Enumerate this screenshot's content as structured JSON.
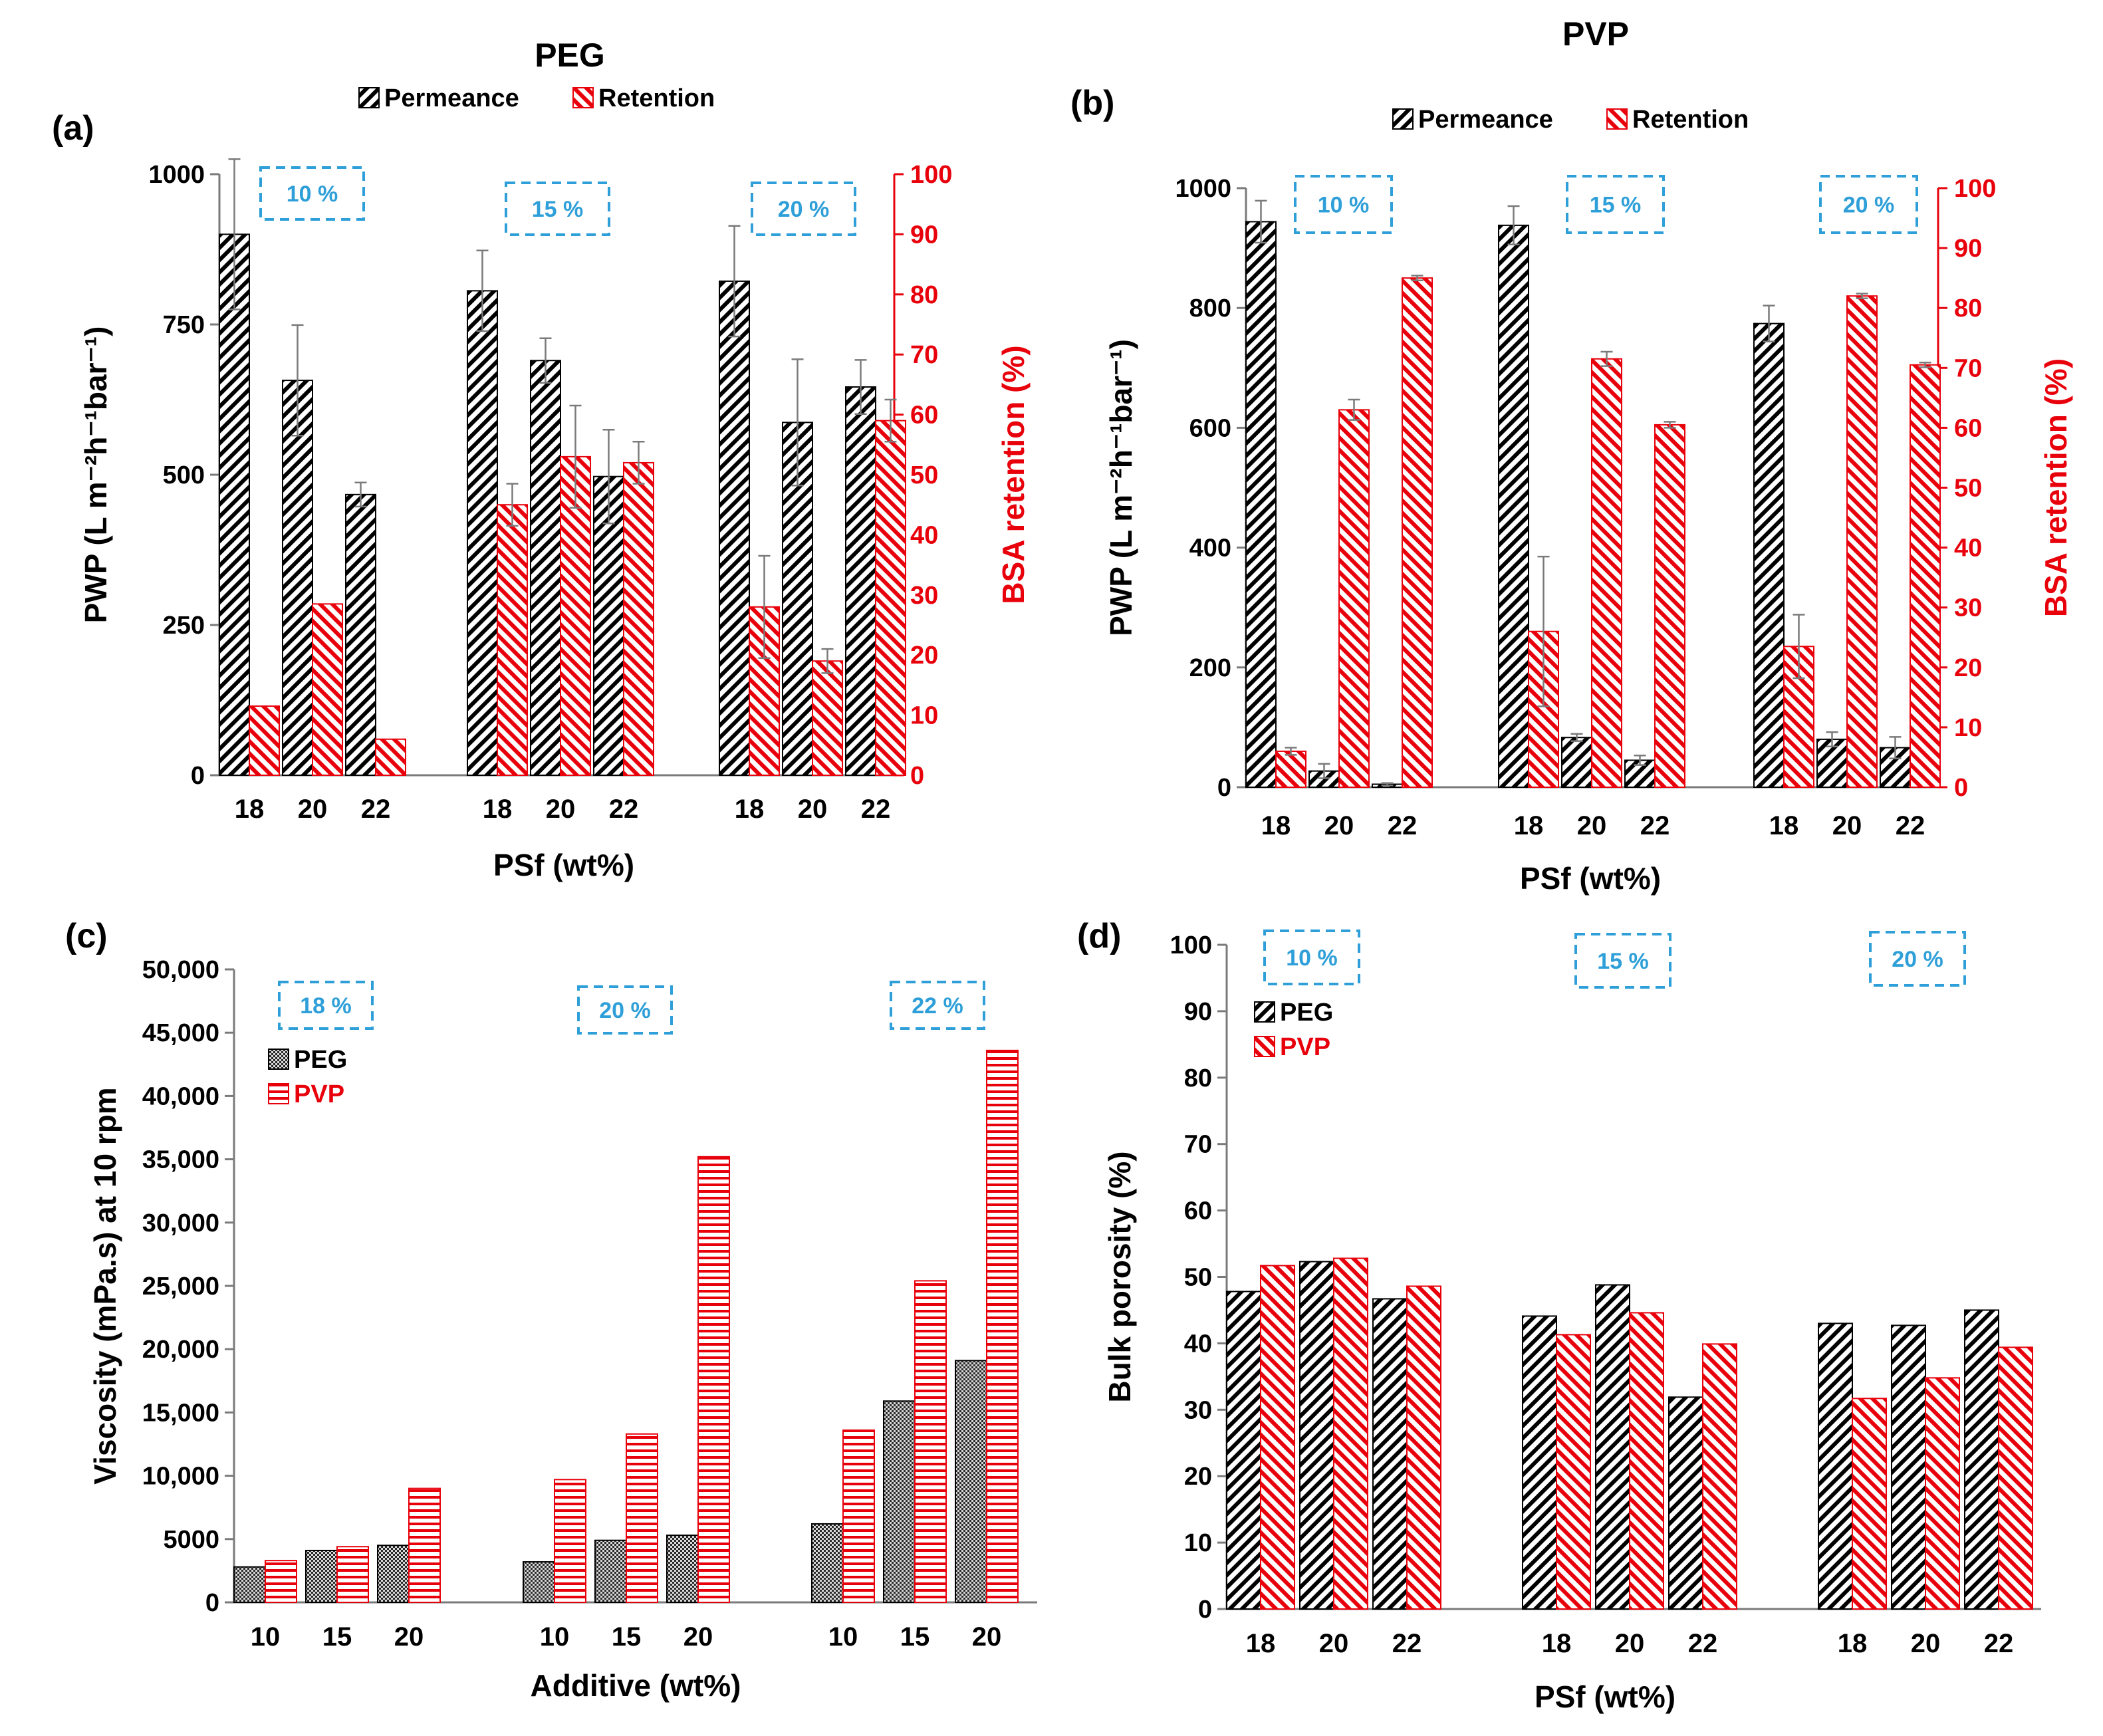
{
  "colors": {
    "black": "#000000",
    "red": "#e8000b",
    "box": "#2e9fd8",
    "grey": "#7a7a7a"
  },
  "chart_data": [
    {
      "panel": "(a)",
      "type": "bar",
      "title": "PEG",
      "groups": [
        {
          "box_label": "10 %",
          "categories": [
            "18",
            "20",
            "22"
          ]
        },
        {
          "box_label": "15 %",
          "categories": [
            "18",
            "20",
            "22"
          ]
        },
        {
          "box_label": "20 %",
          "categories": [
            "18",
            "20",
            "22"
          ]
        }
      ],
      "series": [
        {
          "name": "Permeance",
          "axis": "left",
          "values": [
            900,
            657,
            467,
            806,
            690,
            497,
            822,
            587,
            646
          ],
          "errors": [
            125,
            92,
            20,
            67,
            37,
            78,
            92,
            105,
            45
          ]
        },
        {
          "name": "Retention",
          "axis": "right",
          "values": [
            11.5,
            28.5,
            6,
            45,
            53,
            52,
            28,
            19,
            59
          ],
          "errors": [
            0,
            0,
            0,
            3.5,
            8.5,
            3.5,
            8.5,
            2,
            3.5
          ]
        }
      ],
      "xlabel": "PSf (wt%)",
      "ylabel": "PWP (L m⁻²h⁻¹bar⁻¹)",
      "y2label": "BSA retention (%)",
      "ylim": [
        0,
        1000
      ],
      "yticks": [
        "0",
        "250",
        "500",
        "750",
        "1000"
      ],
      "y2lim": [
        0,
        100
      ],
      "y2ticks": [
        "0",
        "10",
        "20",
        "30",
        "40",
        "50",
        "60",
        "70",
        "80",
        "90",
        "100"
      ]
    },
    {
      "panel": "(b)",
      "type": "bar",
      "title": "PVP",
      "groups": [
        {
          "box_label": "10 %",
          "categories": [
            "18",
            "20",
            "22"
          ]
        },
        {
          "box_label": "15 %",
          "categories": [
            "18",
            "20",
            "22"
          ]
        },
        {
          "box_label": "20 %",
          "categories": [
            "18",
            "20",
            "22"
          ]
        }
      ],
      "series": [
        {
          "name": "Permeance",
          "axis": "left",
          "values": [
            944,
            27,
            5,
            938,
            83,
            45,
            774,
            80,
            66
          ],
          "errors": [
            35,
            12,
            2,
            32,
            6,
            8,
            30,
            12,
            18
          ]
        },
        {
          "name": "Retention",
          "axis": "right",
          "values": [
            6,
            63,
            85,
            26,
            71.5,
            60.5,
            23.5,
            82,
            70.5
          ],
          "errors": [
            0.6,
            1.7,
            0.4,
            12.5,
            1.2,
            0.5,
            5.3,
            0.4,
            0.4
          ]
        }
      ],
      "xlabel": "PSf (wt%)",
      "ylabel": "PWP (L m⁻²h⁻¹bar⁻¹)",
      "y2label": "BSA retention (%)",
      "ylim": [
        0,
        1000
      ],
      "yticks": [
        "0",
        "200",
        "400",
        "600",
        "800",
        "1000"
      ],
      "y2lim": [
        0,
        100
      ],
      "y2ticks": [
        "0",
        "10",
        "20",
        "30",
        "40",
        "50",
        "60",
        "70",
        "80",
        "90",
        "100"
      ]
    },
    {
      "panel": "(c)",
      "type": "bar",
      "groups": [
        {
          "box_label": "18 %",
          "categories": [
            "10",
            "15",
            "20"
          ]
        },
        {
          "box_label": "20 %",
          "categories": [
            "10",
            "15",
            "20"
          ]
        },
        {
          "box_label": "22 %",
          "categories": [
            "10",
            "15",
            "20"
          ]
        }
      ],
      "series": [
        {
          "name": "PEG",
          "values": [
            2800,
            4100,
            4500,
            3200,
            4900,
            5300,
            6200,
            15900,
            19100
          ]
        },
        {
          "name": "PVP",
          "values": [
            3300,
            4400,
            9000,
            9700,
            13300,
            35200,
            13600,
            25400,
            43600
          ]
        }
      ],
      "xlabel": "Additive (wt%)",
      "ylabel": "Viscosity (mPa.s) at 10 rpm",
      "ylim": [
        0,
        50000
      ],
      "yticks": [
        "0",
        "5000",
        "10,000",
        "15,000",
        "20,000",
        "25,000",
        "30,000",
        "35,000",
        "40,000",
        "45,000",
        "50,000"
      ]
    },
    {
      "panel": "(d)",
      "type": "bar",
      "groups": [
        {
          "box_label": "10 %",
          "categories": [
            "18",
            "20",
            "22"
          ]
        },
        {
          "box_label": "15 %",
          "categories": [
            "18",
            "20",
            "22"
          ]
        },
        {
          "box_label": "20 %",
          "categories": [
            "18",
            "20",
            "22"
          ]
        }
      ],
      "series": [
        {
          "name": "PEG",
          "values": [
            47.8,
            52.3,
            46.7,
            44.1,
            48.8,
            31.9,
            43,
            42.7,
            45
          ]
        },
        {
          "name": "PVP",
          "values": [
            51.7,
            52.8,
            48.6,
            41.3,
            44.6,
            39.9,
            31.7,
            34.8,
            39.4
          ]
        }
      ],
      "xlabel": "PSf (wt%)",
      "ylabel": "Bulk porosity (%)",
      "ylim": [
        0,
        100
      ],
      "yticks": [
        "0",
        "10",
        "20",
        "30",
        "40",
        "50",
        "60",
        "70",
        "80",
        "90",
        "100"
      ]
    }
  ]
}
